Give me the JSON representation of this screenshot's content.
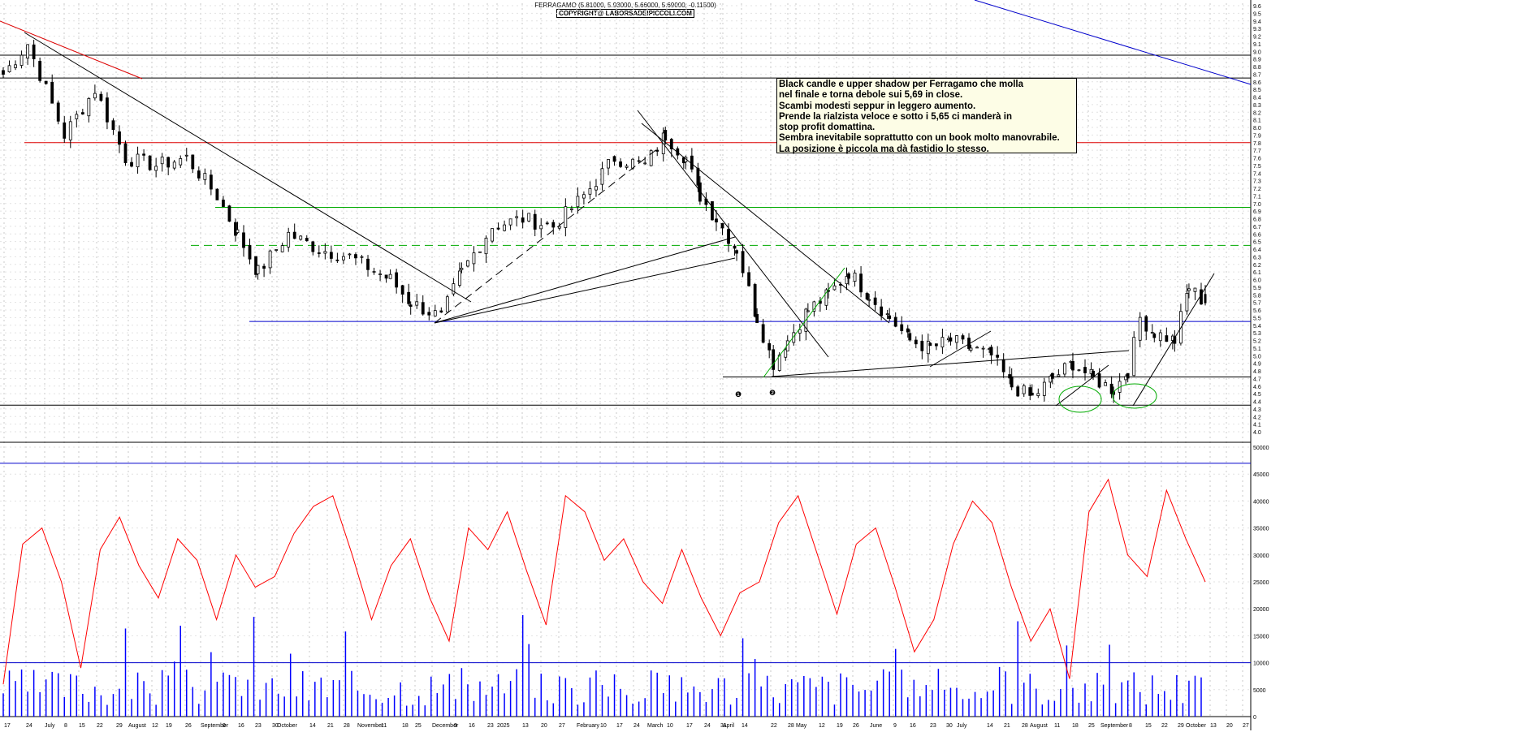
{
  "header": {
    "line1": "FERRAGAMO (5.81000, 5.93000, 5.66000, 5.69000, -0.11500)",
    "line2": "COPYRIGHT@ LABORSADEIPICCOLI.COM"
  },
  "note": [
    "Black candle e upper shadow per Ferragamo che molla",
    "nel finale e torna debole sui 5,69 in close.",
    "Scambi modesti seppur in leggero aumento.",
    "Prende la rialzista veloce e sotto i 5,65 ci manderà in",
    "stop profit domattina.",
    "Sembra inevitabile soprattutto con un book molto manovrabile.",
    "La posizione è piccola ma dà fastidio lo stesso."
  ],
  "markers": [
    "❶",
    "❷"
  ],
  "colors": {
    "candle": "#000000",
    "support": "#0000cc",
    "resistance": "#dd0000",
    "green": "#00aa00",
    "oscillator": "#ff0000",
    "volume": "#0000ff"
  },
  "chart_data": [
    {
      "type": "candlestick",
      "title": "FERRAGAMO (5.81000, 5.93000, 5.66000, 5.69000, -0.11500)",
      "ylim": [
        4.0,
        9.6
      ],
      "yticks": [
        "9.6",
        "9.5",
        "9.4",
        "9.3",
        "9.2",
        "9.1",
        "9.0",
        "8.9",
        "8.8",
        "8.7",
        "8.6",
        "8.5",
        "8.4",
        "8.3",
        "8.2",
        "8.1",
        "8.0",
        "7.9",
        "7.8",
        "7.7",
        "7.6",
        "7.5",
        "7.4",
        "7.3",
        "7.2",
        "7.1",
        "7.0",
        "6.9",
        "6.8",
        "6.7",
        "6.6",
        "6.5",
        "6.4",
        "6.3",
        "6.2",
        "6.1",
        "6.0",
        "5.9",
        "5.8",
        "5.7",
        "5.6",
        "5.5",
        "5.4",
        "5.3",
        "5.2",
        "5.1",
        "5.0",
        "4.9",
        "4.8",
        "4.7",
        "4.6",
        "4.5",
        "4.4",
        "4.3",
        "4.2",
        "4.1",
        "4.0"
      ],
      "last_candle": {
        "open": 5.81,
        "high": 5.93,
        "low": 5.66,
        "close": 5.69
      },
      "close_path": [
        [
          0,
          8.7
        ],
        [
          12,
          9.1
        ],
        [
          30,
          7.9
        ],
        [
          45,
          8.5
        ],
        [
          60,
          7.6
        ],
        [
          75,
          7.5
        ],
        [
          90,
          7.6
        ],
        [
          105,
          7.1
        ],
        [
          115,
          6.6
        ],
        [
          125,
          6.1
        ],
        [
          140,
          6.6
        ],
        [
          155,
          6.4
        ],
        [
          170,
          6.3
        ],
        [
          190,
          6.0
        ],
        [
          200,
          5.7
        ],
        [
          215,
          5.5
        ],
        [
          225,
          6.1
        ],
        [
          240,
          6.7
        ],
        [
          255,
          6.8
        ],
        [
          270,
          6.7
        ],
        [
          285,
          7.1
        ],
        [
          300,
          7.6
        ],
        [
          315,
          7.5
        ],
        [
          325,
          7.9
        ],
        [
          335,
          7.6
        ],
        [
          342,
          7.1
        ],
        [
          350,
          6.8
        ],
        [
          360,
          6.4
        ],
        [
          370,
          5.5
        ],
        [
          378,
          4.9
        ],
        [
          385,
          5.2
        ],
        [
          395,
          5.6
        ],
        [
          405,
          5.8
        ],
        [
          415,
          6.1
        ],
        [
          425,
          5.8
        ],
        [
          435,
          5.5
        ],
        [
          445,
          5.2
        ],
        [
          455,
          5.1
        ],
        [
          465,
          5.2
        ],
        [
          475,
          5.1
        ],
        [
          485,
          5.0
        ],
        [
          495,
          4.6
        ],
        [
          505,
          4.45
        ],
        [
          515,
          4.7
        ],
        [
          525,
          4.9
        ],
        [
          535,
          4.7
        ],
        [
          545,
          4.55
        ],
        [
          552,
          4.8
        ],
        [
          558,
          5.5
        ],
        [
          565,
          5.3
        ],
        [
          575,
          5.2
        ],
        [
          582,
          5.9
        ],
        [
          590,
          5.69
        ]
      ],
      "levels": [
        8.95,
        8.65,
        7.8,
        6.95,
        6.45,
        5.45,
        4.72,
        4.35
      ],
      "dashed_levels": [
        6.45
      ]
    },
    {
      "type": "bar",
      "name": "volume",
      "ylim": [
        0,
        50000
      ],
      "yticks": [
        "50000",
        "45000",
        "40000",
        "35000",
        "30000",
        "25000",
        "20000",
        "15000",
        "10000",
        "5000",
        "0"
      ]
    },
    {
      "type": "line",
      "name": "oscillator",
      "ylim": [
        0,
        50000
      ],
      "values": [
        6000,
        32000,
        35000,
        25000,
        9000,
        31000,
        37000,
        28000,
        22000,
        33000,
        29000,
        18000,
        30000,
        24000,
        26000,
        34000,
        39000,
        41000,
        30000,
        18000,
        28000,
        33000,
        22000,
        14000,
        35000,
        31000,
        38000,
        27000,
        17000,
        41000,
        38000,
        29000,
        33000,
        25000,
        21000,
        31000,
        22000,
        15000,
        23000,
        25000,
        36000,
        41000,
        30000,
        19000,
        32000,
        35000,
        24000,
        12000,
        18000,
        32000,
        40000,
        36000,
        24000,
        14000,
        20000,
        7000,
        38000,
        44000,
        30000,
        26000,
        42000,
        33000,
        25000
      ],
      "x_labels": [
        "17",
        "24",
        "July",
        "8",
        "15",
        "22",
        "29",
        "August",
        "12",
        "19",
        "26",
        "September",
        "9",
        "16",
        "23",
        "30",
        "October",
        "14",
        "21",
        "28",
        "November",
        "11",
        "18",
        "25",
        "December",
        "9",
        "16",
        "23",
        "2025",
        "13",
        "20",
        "27",
        "February",
        "10",
        "17",
        "24",
        "March",
        "10",
        "17",
        "24",
        "31",
        "April",
        "14",
        "22",
        "28",
        "May",
        "12",
        "19",
        "26",
        "June",
        "9",
        "16",
        "23",
        "30",
        "July",
        "14",
        "21",
        "28",
        "August",
        "11",
        "18",
        "25",
        "September",
        "8",
        "15",
        "22",
        "29",
        "October",
        "13",
        "20",
        "27"
      ],
      "x_label_pos": [
        5,
        32,
        55,
        79,
        97,
        119,
        143,
        158,
        187,
        204,
        228,
        247,
        274,
        293,
        314,
        335,
        341,
        381,
        403,
        423,
        440,
        469,
        495,
        511,
        532,
        559,
        577,
        600,
        612,
        643,
        666,
        688,
        710,
        739,
        759,
        780,
        797,
        821,
        845,
        867,
        887,
        890,
        913,
        949,
        970,
        980,
        1008,
        1030,
        1050,
        1071,
        1100,
        1120,
        1145,
        1165,
        1178,
        1215,
        1236,
        1258,
        1268,
        1298,
        1320,
        1340,
        1355,
        1390,
        1410,
        1430,
        1450,
        1460,
        1490,
        1510,
        1530
      ]
    }
  ]
}
